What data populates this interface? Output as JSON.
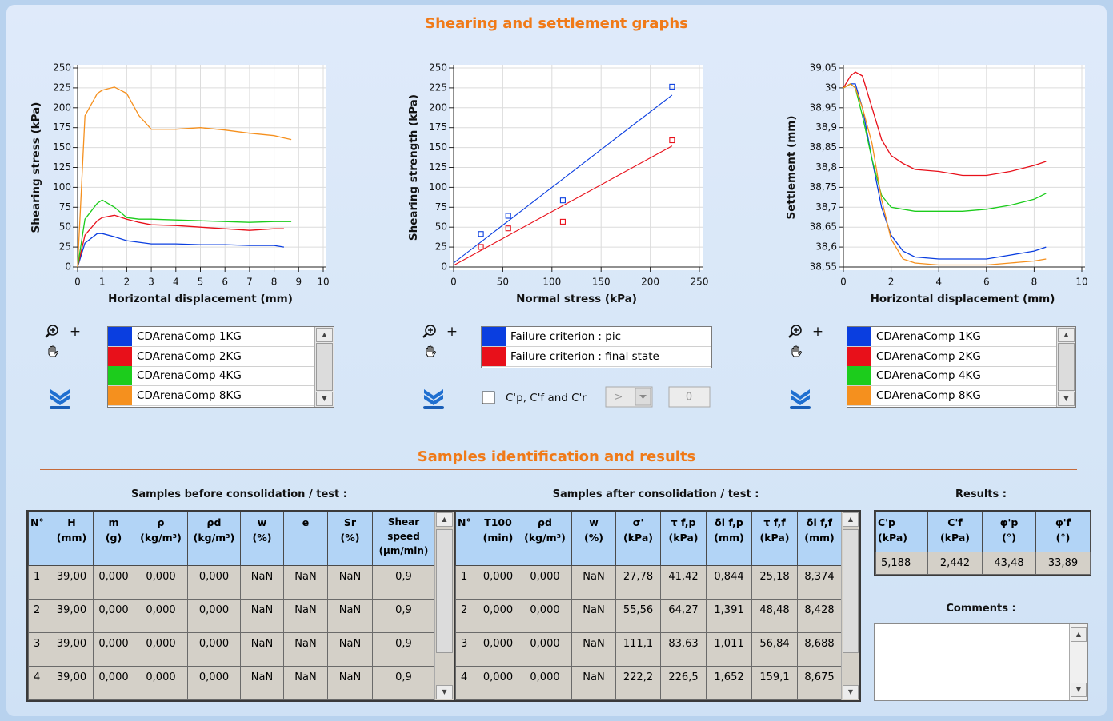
{
  "sections": [
    "Shearing and settlement graphs",
    "Samples identification and results"
  ],
  "controls": {
    "zoom_label": "+",
    "checkbox_label": "C'p, C'f and C'r",
    "operator": ">",
    "threshold": "0"
  },
  "chart_data": [
    {
      "type": "line",
      "x_label": "Horizontal displacement (mm)",
      "y_label": "Shearing stress (kPa)",
      "x": [
        0,
        0.3,
        0.8,
        1,
        1.5,
        2,
        2.5,
        3,
        4,
        5,
        6,
        7,
        8,
        8.4,
        8.7
      ],
      "series": [
        {
          "name": "CDArenaComp 1KG",
          "color": "#0a3ee0",
          "values": [
            0,
            30,
            42,
            42,
            38,
            33,
            31,
            29,
            29,
            28,
            28,
            27,
            27,
            25,
            null
          ]
        },
        {
          "name": "CDArenaComp 2KG",
          "color": "#e8101a",
          "values": [
            0,
            40,
            58,
            62,
            65,
            60,
            56,
            53,
            52,
            50,
            48,
            46,
            48,
            48,
            null
          ]
        },
        {
          "name": "CDArenaComp 4KG",
          "color": "#1ccc1c",
          "values": [
            0,
            60,
            80,
            84,
            75,
            62,
            60,
            60,
            59,
            58,
            57,
            56,
            57,
            57,
            57
          ]
        },
        {
          "name": "CDArenaComp 8KG",
          "color": "#f5901e",
          "values": [
            0,
            190,
            218,
            222,
            226,
            218,
            190,
            173,
            173,
            175,
            172,
            168,
            165,
            162,
            160
          ]
        }
      ],
      "xlim": [
        0,
        10
      ],
      "xticks": [
        0,
        1,
        2,
        3,
        4,
        5,
        6,
        7,
        8,
        9,
        10
      ],
      "ylim": [
        0,
        250
      ],
      "yticks": [
        0,
        25,
        50,
        75,
        100,
        125,
        150,
        175,
        200,
        225,
        250
      ],
      "grid": true
    },
    {
      "type": "scatter",
      "x_label": "Normal stress (kPa)",
      "y_label": "Shearing strength (kPa)",
      "x": [
        27.78,
        55.56,
        111.1,
        222.2
      ],
      "series": [
        {
          "name": "Failure criterion : pic",
          "color": "#0a3ee0",
          "values": [
            41.42,
            64.27,
            83.63,
            226.5
          ],
          "fit": {
            "x": [
              0,
              222.2
            ],
            "values": [
              5,
              216
            ]
          }
        },
        {
          "name": "Failure criterion : final state",
          "color": "#e8101a",
          "values": [
            25.18,
            48.48,
            56.84,
            159.1
          ],
          "fit": {
            "x": [
              0,
              222.2
            ],
            "values": [
              2,
              152
            ]
          }
        }
      ],
      "xlim": [
        0,
        250
      ],
      "xticks": [
        0,
        50,
        100,
        150,
        200,
        250
      ],
      "ylim": [
        0,
        250
      ],
      "yticks": [
        0,
        25,
        50,
        75,
        100,
        125,
        150,
        175,
        200,
        225,
        250
      ],
      "grid": true
    },
    {
      "type": "line",
      "x_label": "Horizontal displacement (mm)",
      "y_label": "Settlement (mm)",
      "x": [
        0,
        0.3,
        0.5,
        0.8,
        1.2,
        1.6,
        2,
        2.5,
        3,
        4,
        5,
        6,
        7,
        8,
        8.5
      ],
      "series": [
        {
          "name": "CDArenaComp 1KG",
          "color": "#0a3ee0",
          "values": [
            39.0,
            39.01,
            39.01,
            38.95,
            38.82,
            38.7,
            38.63,
            38.59,
            38.575,
            38.57,
            38.57,
            38.57,
            38.58,
            38.59,
            38.6
          ]
        },
        {
          "name": "CDArenaComp 2KG",
          "color": "#e8101a",
          "values": [
            39.0,
            39.03,
            39.04,
            39.03,
            38.95,
            38.87,
            38.83,
            38.81,
            38.795,
            38.79,
            38.78,
            38.78,
            38.79,
            38.805,
            38.815
          ]
        },
        {
          "name": "CDArenaComp 4KG",
          "color": "#1ccc1c",
          "values": [
            39.0,
            39.01,
            39.0,
            38.93,
            38.82,
            38.73,
            38.7,
            38.695,
            38.69,
            38.69,
            38.69,
            38.695,
            38.705,
            38.72,
            38.735
          ]
        },
        {
          "name": "CDArenaComp 8KG",
          "color": "#f5901e",
          "values": [
            39.0,
            39.01,
            39.0,
            38.95,
            38.86,
            38.72,
            38.62,
            38.57,
            38.56,
            38.555,
            38.555,
            38.555,
            38.56,
            38.565,
            38.57
          ]
        }
      ],
      "xlim": [
        0,
        10
      ],
      "xticks": [
        0,
        2,
        4,
        6,
        8,
        10
      ],
      "ylim": [
        38.55,
        39.05
      ],
      "yticks": [
        {
          "value": 38.55,
          "label": "38,55"
        },
        {
          "value": 38.6,
          "label": "38,6"
        },
        {
          "value": 38.65,
          "label": "38,65"
        },
        {
          "value": 38.7,
          "label": "38,7"
        },
        {
          "value": 38.75,
          "label": "38,75"
        },
        {
          "value": 38.8,
          "label": "38,8"
        },
        {
          "value": 38.85,
          "label": "38,85"
        },
        {
          "value": 38.9,
          "label": "38,9"
        },
        {
          "value": 38.95,
          "label": "38,95"
        },
        {
          "value": 39,
          "label": "39"
        },
        {
          "value": 39.05,
          "label": "39,05"
        }
      ],
      "grid": true
    }
  ],
  "tables": {
    "before": {
      "title": "Samples before consolidation / test :",
      "header": [
        [
          "N°"
        ],
        [
          "H",
          "(mm)"
        ],
        [
          "m",
          "(g)"
        ],
        [
          "ρ",
          "(kg/m³)"
        ],
        [
          "ρd",
          "(kg/m³)"
        ],
        [
          "w",
          "(%)"
        ],
        [
          "e"
        ],
        [
          "Sr",
          "(%)"
        ],
        [
          "Shear",
          "speed",
          "(µm/min)"
        ]
      ],
      "rows": [
        [
          "1",
          "39,00",
          "0,000",
          "0,000",
          "0,000",
          "NaN",
          "NaN",
          "NaN",
          "0,9"
        ],
        [
          "2",
          "39,00",
          "0,000",
          "0,000",
          "0,000",
          "NaN",
          "NaN",
          "NaN",
          "0,9"
        ],
        [
          "3",
          "39,00",
          "0,000",
          "0,000",
          "0,000",
          "NaN",
          "NaN",
          "NaN",
          "0,9"
        ],
        [
          "4",
          "39,00",
          "0,000",
          "0,000",
          "0,000",
          "NaN",
          "NaN",
          "NaN",
          "0,9"
        ]
      ]
    },
    "after": {
      "title": "Samples after consolidation / test :",
      "header": [
        [
          "N°"
        ],
        [
          "T100",
          "(min)"
        ],
        [
          "ρd",
          "(kg/m³)"
        ],
        [
          "w",
          "(%)"
        ],
        [
          "σ'",
          "(kPa)"
        ],
        [
          "τ f,p",
          "(kPa)"
        ],
        [
          "δl f,p",
          "(mm)"
        ],
        [
          "τ f,f",
          "(kPa)"
        ],
        [
          "δl f,f",
          "(mm)"
        ]
      ],
      "rows": [
        [
          "1",
          "0,000",
          "0,000",
          "NaN",
          "27,78",
          "41,42",
          "0,844",
          "25,18",
          "8,374"
        ],
        [
          "2",
          "0,000",
          "0,000",
          "NaN",
          "55,56",
          "64,27",
          "1,391",
          "48,48",
          "8,428"
        ],
        [
          "3",
          "0,000",
          "0,000",
          "NaN",
          "111,1",
          "83,63",
          "1,011",
          "56,84",
          "8,688"
        ],
        [
          "4",
          "0,000",
          "0,000",
          "NaN",
          "222,2",
          "226,5",
          "1,652",
          "159,1",
          "8,675"
        ]
      ]
    },
    "results": {
      "title": "Results :",
      "header": [
        [
          "C'p",
          "(kPa)"
        ],
        [
          "C'f",
          "(kPa)"
        ],
        [
          "φ'p",
          "(°)"
        ],
        [
          "φ'f",
          "(°)"
        ]
      ],
      "rows": [
        [
          "5,188",
          "2,442",
          "43,48",
          "33,89"
        ]
      ]
    }
  },
  "comments": {
    "title": "Comments :"
  }
}
